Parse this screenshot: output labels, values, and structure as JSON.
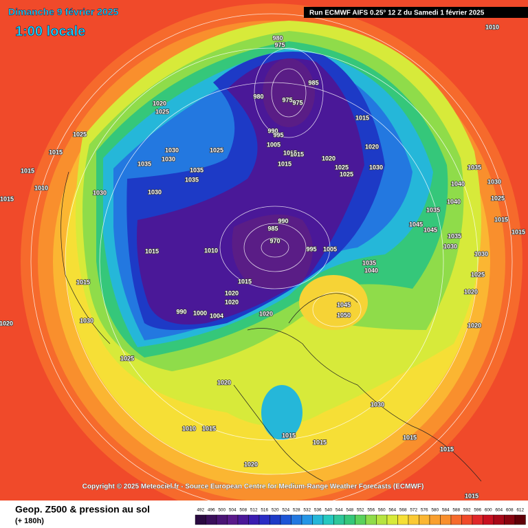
{
  "header": {
    "date": "Dimanche 9 février 2025",
    "time": "1:00 locale",
    "run": "Run ECMWF AIFS 0.25° 12 Z du Samedi 1 février 2025"
  },
  "map": {
    "pressure_labels": [
      980,
      975,
      1010,
      985,
      980,
      975,
      975,
      1020,
      1025,
      1015,
      990,
      995,
      1005,
      1015,
      1015,
      1015,
      1025,
      1015,
      1030,
      1030,
      1025,
      1035,
      1015,
      1020,
      1020,
      1025,
      1025,
      1030,
      1035,
      1035,
      1035,
      1010,
      1030,
      1030,
      1015,
      1040,
      1030,
      1025,
      1040,
      1035,
      990,
      985,
      970,
      1045,
      1045,
      1015,
      1010,
      995,
      1005,
      1035,
      1040,
      1035,
      1030,
      1030,
      1025,
      1020,
      1015,
      1020,
      1020,
      990,
      1000,
      1004,
      1020,
      1045,
      1050,
      1030,
      1020,
      1020,
      1025,
      1020,
      1030,
      1010,
      1015,
      1015,
      1015,
      1015,
      1015,
      1020,
      1015,
      1015,
      1015,
      1015
    ]
  },
  "footer": {
    "copyright": "Copyright © 2025 Meteociel.fr - Source European Centre for Medium-Range Weather Forecasts (ECMWF)",
    "legend_title": "Geop. Z500 & pression au sol",
    "legend_subtitle": "(+ 180h)",
    "colorbar_ticks": [
      492,
      496,
      500,
      504,
      508,
      512,
      516,
      520,
      524,
      528,
      532,
      536,
      540,
      544,
      548,
      552,
      556,
      560,
      564,
      568,
      572,
      576,
      580,
      584,
      588,
      592,
      596,
      600,
      604,
      608,
      612
    ]
  }
}
